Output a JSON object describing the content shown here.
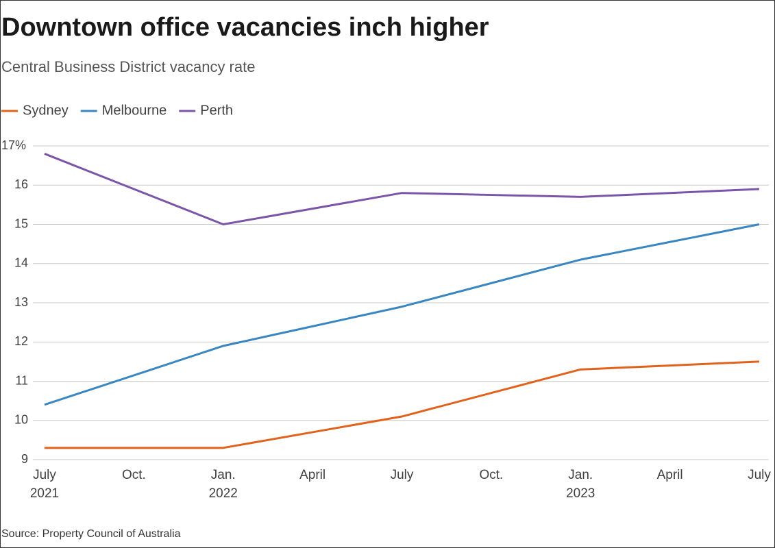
{
  "chart_data": {
    "type": "line",
    "title": "Downtown office vacancies inch higher",
    "subtitle": "Central Business District vacancy rate",
    "source": "Source: Property Council of Australia",
    "categories": [
      "July",
      "Oct.",
      "Jan.",
      "April",
      "July",
      "Oct.",
      "Jan.",
      "April",
      "July"
    ],
    "category_years": [
      "2021",
      null,
      "2022",
      null,
      null,
      null,
      "2023",
      null,
      null
    ],
    "series": [
      {
        "name": "Sydney",
        "color": "#e0621c",
        "values": [
          9.3,
          9.3,
          9.3,
          9.7,
          10.1,
          10.7,
          11.3,
          11.4,
          11.5
        ]
      },
      {
        "name": "Melbourne",
        "color": "#3a86c0",
        "values": [
          10.4,
          11.15,
          11.9,
          12.4,
          12.9,
          13.5,
          14.1,
          14.55,
          15.0
        ]
      },
      {
        "name": "Perth",
        "color": "#7b55a8",
        "values": [
          16.8,
          15.9,
          15.0,
          15.4,
          15.8,
          15.75,
          15.7,
          15.8,
          15.9
        ]
      }
    ],
    "ylim": [
      9,
      17
    ],
    "yticks": [
      9,
      10,
      11,
      12,
      13,
      14,
      15,
      16,
      {
        "value": 17,
        "label": "17%"
      }
    ],
    "grid": true,
    "legend": "top-left"
  }
}
